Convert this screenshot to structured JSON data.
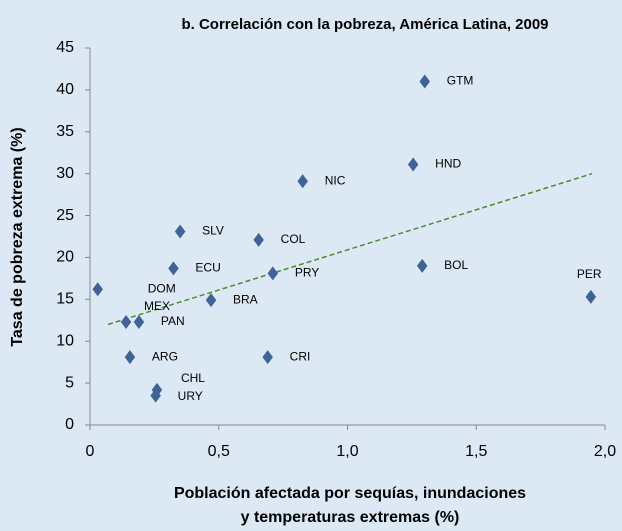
{
  "chart_data": {
    "type": "scatter",
    "title": "b. Correlación con la pobreza, América Latina, 2009",
    "xlabel": [
      "Población afectada por sequías, inundaciones",
      "y temperaturas extremas (%)"
    ],
    "ylabel": "Tasa de pobreza extrema (%)",
    "color": "#3e6497",
    "points": [
      {
        "label": "GTM",
        "x": 1.3,
        "y": 41
      },
      {
        "label": "HND",
        "x": 1.255,
        "y": 31.1
      },
      {
        "label": "NIC",
        "x": 0.826,
        "y": 29.1
      },
      {
        "label": "SLV",
        "x": 0.35,
        "y": 23.1
      },
      {
        "label": "COL",
        "x": 0.655,
        "y": 22.1
      },
      {
        "label": "ECU",
        "x": 0.324,
        "y": 18.7
      },
      {
        "label": "PRY",
        "x": 0.71,
        "y": 18.1
      },
      {
        "label": "BOL",
        "x": 1.29,
        "y": 19
      },
      {
        "label": "PER",
        "x": 1.945,
        "y": 15.3
      },
      {
        "label": "DOM",
        "x": 0.03,
        "y": 16.2
      },
      {
        "label": "MEX",
        "x": 0.14,
        "y": 12.3
      },
      {
        "label": "PAN",
        "x": 0.19,
        "y": 12.3
      },
      {
        "label": "BRA",
        "x": 0.47,
        "y": 14.9
      },
      {
        "label": "ARG",
        "x": 0.155,
        "y": 8.1
      },
      {
        "label": "CRI",
        "x": 0.69,
        "y": 8.1
      },
      {
        "label": "CHL",
        "x": 0.26,
        "y": 4.2
      },
      {
        "label": "URY",
        "x": 0.255,
        "y": 3.5
      }
    ],
    "trendline": {
      "color": "#4e8a2e",
      "x": [
        0.07,
        1.95
      ],
      "y": [
        12,
        30
      ]
    },
    "xlim": [
      0,
      2
    ],
    "ylim": [
      0,
      45
    ],
    "xticks": [
      0,
      {
        "value": 0.5,
        "label": "0,5"
      },
      {
        "value": 1,
        "label": "1,0"
      },
      {
        "value": 1.5,
        "label": "1,5"
      },
      {
        "value": 2,
        "label": "2,0"
      }
    ],
    "yticks": [
      0,
      5,
      10,
      15,
      20,
      25,
      30,
      35,
      40,
      45
    ]
  }
}
